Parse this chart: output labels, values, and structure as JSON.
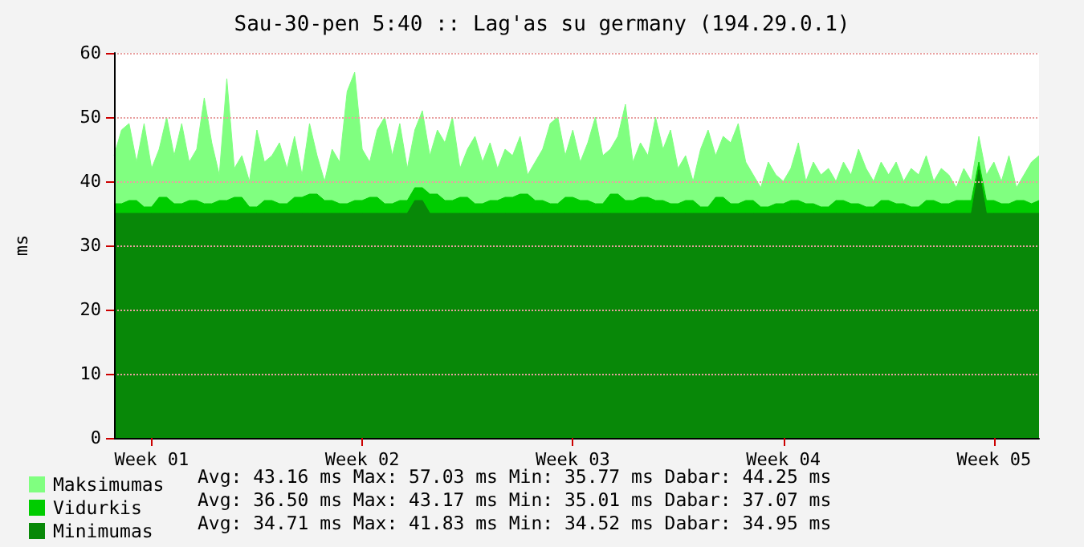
{
  "chart_data": {
    "type": "area",
    "title": "Sau-30-pen 5:40 :: Lag'as su germany (194.29.0.1)",
    "ylabel": "ms",
    "categories": [
      null,
      null,
      null,
      null,
      null,
      "Week 01",
      null,
      null,
      null,
      null,
      null,
      null,
      null,
      null,
      null,
      null,
      null,
      null,
      null,
      null,
      null,
      null,
      null,
      null,
      null,
      null,
      null,
      null,
      null,
      null,
      null,
      null,
      null,
      "Week 02",
      null,
      null,
      null,
      null,
      null,
      null,
      null,
      null,
      null,
      null,
      null,
      null,
      null,
      null,
      null,
      null,
      null,
      null,
      null,
      null,
      null,
      null,
      null,
      null,
      null,
      null,
      null,
      "Week 03",
      null,
      null,
      null,
      null,
      null,
      null,
      null,
      null,
      null,
      null,
      null,
      null,
      null,
      null,
      null,
      null,
      null,
      null,
      null,
      null,
      null,
      null,
      null,
      null,
      null,
      null,
      null,
      "Week 04",
      null,
      null,
      null,
      null,
      null,
      null,
      null,
      null,
      null,
      null,
      null,
      null,
      null,
      null,
      null,
      null,
      null,
      null,
      null,
      null,
      null,
      null,
      null,
      null,
      null,
      null,
      null,
      "Week 05",
      null,
      null,
      null,
      null,
      null,
      null
    ],
    "ylim": [
      0,
      60
    ],
    "yticks": [
      0,
      10,
      20,
      30,
      40,
      50,
      60
    ],
    "grid": "y",
    "legend": "bottom left",
    "marker": "none",
    "annotations": [
      "Avg: 43.16 ms Max: 57.03 ms Min: 35.77 ms Dabar: 44.25 ms",
      "Avg: 36.50 ms Max: 43.17 ms Min: 35.01 ms Dabar: 37.07 ms",
      "Avg: 34.71 ms Max: 41.83 ms Min: 34.52 ms Dabar: 34.95 ms"
    ],
    "series": [
      {
        "name": "Maksimumas",
        "color": "#80ff80",
        "values": [
          44,
          48,
          49,
          43,
          49,
          42,
          45,
          50,
          44,
          49,
          43,
          45,
          53,
          46,
          41,
          56,
          42,
          44,
          40,
          48,
          43,
          44,
          46,
          42,
          47,
          41,
          49,
          44,
          40,
          45,
          43,
          54,
          57,
          45,
          43,
          48,
          50,
          44,
          49,
          42,
          48,
          51,
          44,
          48,
          46,
          50,
          42,
          45,
          47,
          43,
          46,
          42,
          45,
          44,
          47,
          41,
          43,
          45,
          49,
          50,
          44,
          48,
          43,
          46,
          50,
          44,
          45,
          47,
          52,
          43,
          46,
          44,
          50,
          45,
          48,
          42,
          44,
          40,
          45,
          48,
          44,
          47,
          46,
          49,
          43,
          41,
          39,
          43,
          41,
          40,
          42,
          46,
          40,
          43,
          41,
          42,
          40,
          43,
          41,
          45,
          42,
          40,
          43,
          41,
          43,
          40,
          42,
          41,
          44,
          40,
          42,
          41,
          39,
          42,
          40,
          47,
          41,
          43,
          40,
          44,
          39,
          41,
          43,
          44
        ]
      },
      {
        "name": "Vidurkis",
        "color": "#00cc00",
        "values": [
          36.5,
          36.5,
          37,
          37,
          36,
          36,
          37.5,
          37.5,
          36.5,
          36.5,
          37,
          37,
          36.5,
          36.5,
          37,
          37,
          37.5,
          37.5,
          36,
          36,
          37,
          37,
          36.5,
          36.5,
          37.5,
          37.5,
          38,
          38,
          37,
          37,
          36.5,
          36.5,
          37,
          37,
          37.5,
          37.5,
          36.5,
          36.5,
          37,
          37,
          39,
          39,
          38,
          38,
          37,
          37,
          37.5,
          37.5,
          36.5,
          36.5,
          37,
          37,
          37.5,
          37.5,
          38,
          38,
          37,
          37,
          36.5,
          36.5,
          37.5,
          37.5,
          37,
          37,
          36.5,
          36.5,
          38,
          38,
          37,
          37,
          37.5,
          37.5,
          37,
          37,
          36.5,
          36.5,
          37,
          37,
          36,
          36,
          37.5,
          37.5,
          36.5,
          36.5,
          37,
          37,
          36,
          36,
          36.5,
          36.5,
          37,
          37,
          36.5,
          36.5,
          36,
          36,
          37,
          37,
          36.5,
          36.5,
          36,
          36,
          37,
          37,
          36.5,
          36.5,
          36,
          36,
          37,
          37,
          36.5,
          36.5,
          37,
          37,
          37,
          43,
          37,
          37,
          36.5,
          36.5,
          37,
          37,
          36.5,
          37
        ]
      },
      {
        "name": "Minimumas",
        "color": "#088808",
        "values": [
          35,
          35,
          35,
          35,
          35,
          35,
          35,
          35,
          35,
          35,
          35,
          35,
          35,
          35,
          35,
          35,
          35,
          35,
          35,
          35,
          35,
          35,
          35,
          35,
          35,
          35,
          35,
          35,
          35,
          35,
          35,
          35,
          35,
          35,
          35,
          35,
          35,
          35,
          35,
          35,
          37,
          37,
          35,
          35,
          35,
          35,
          35,
          35,
          35,
          35,
          35,
          35,
          35,
          35,
          35,
          35,
          35,
          35,
          35,
          35,
          35,
          35,
          35,
          35,
          35,
          35,
          35,
          35,
          35,
          35,
          35,
          35,
          35,
          35,
          35,
          35,
          35,
          35,
          35,
          35,
          35,
          35,
          35,
          35,
          35,
          35,
          35,
          35,
          35,
          35,
          35,
          35,
          35,
          35,
          35,
          35,
          35,
          35,
          35,
          35,
          35,
          35,
          35,
          35,
          35,
          35,
          35,
          35,
          35,
          35,
          35,
          35,
          35,
          35,
          35,
          41.8,
          35,
          35,
          35,
          35,
          35,
          35,
          35,
          35
        ]
      }
    ]
  }
}
